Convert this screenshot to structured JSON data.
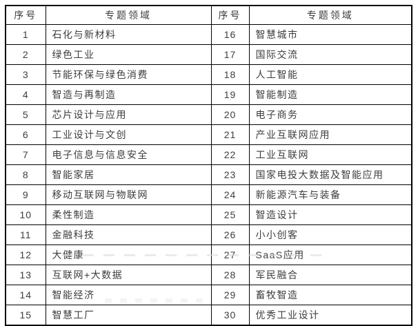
{
  "table": {
    "border_color": "#000000",
    "text_color": "#3d3d3d",
    "header": {
      "no": "序号",
      "field": "专题领域"
    },
    "left_rows": [
      {
        "no": "1",
        "field": "石化与新材料"
      },
      {
        "no": "2",
        "field": "绿色工业"
      },
      {
        "no": "3",
        "field": "节能环保与绿色消费"
      },
      {
        "no": "4",
        "field": "智造与再制造"
      },
      {
        "no": "5",
        "field": "芯片设计与应用"
      },
      {
        "no": "6",
        "field": "工业设计与文创"
      },
      {
        "no": "7",
        "field": "电子信息与信息安全"
      },
      {
        "no": "8",
        "field": "智能家居"
      },
      {
        "no": "9",
        "field": "移动互联网与物联网"
      },
      {
        "no": "10",
        "field": "柔性制造"
      },
      {
        "no": "11",
        "field": "金融科技"
      },
      {
        "no": "12",
        "field": "大健康"
      },
      {
        "no": "13",
        "field": "互联网+大数据"
      },
      {
        "no": "14",
        "field": "智能经济"
      },
      {
        "no": "15",
        "field": "智慧工厂"
      }
    ],
    "right_rows": [
      {
        "no": "16",
        "field": "智慧城市"
      },
      {
        "no": "17",
        "field": "国际交流"
      },
      {
        "no": "18",
        "field": "人工智能"
      },
      {
        "no": "19",
        "field": "智能制造"
      },
      {
        "no": "20",
        "field": "电子商务"
      },
      {
        "no": "21",
        "field": "产业互联网应用"
      },
      {
        "no": "22",
        "field": "工业互联网"
      },
      {
        "no": "23",
        "field": "国家电投大数据及智能应用"
      },
      {
        "no": "24",
        "field": "新能源汽车与装备"
      },
      {
        "no": "25",
        "field": "智造设计"
      },
      {
        "no": "26",
        "field": "小小创客"
      },
      {
        "no": "27",
        "field": "SaaS应用"
      },
      {
        "no": "28",
        "field": "军民融合"
      },
      {
        "no": "29",
        "field": "畜牧智造"
      },
      {
        "no": "30",
        "field": "优秀工业设计"
      }
    ]
  },
  "chart_data": {
    "type": "table",
    "title": "",
    "columns": [
      "序号",
      "专题领域",
      "序号",
      "专题领域"
    ],
    "rows": [
      [
        1,
        "石化与新材料",
        16,
        "智慧城市"
      ],
      [
        2,
        "绿色工业",
        17,
        "国际交流"
      ],
      [
        3,
        "节能环保与绿色消费",
        18,
        "人工智能"
      ],
      [
        4,
        "智造与再制造",
        19,
        "智能制造"
      ],
      [
        5,
        "芯片设计与应用",
        20,
        "电子商务"
      ],
      [
        6,
        "工业设计与文创",
        21,
        "产业互联网应用"
      ],
      [
        7,
        "电子信息与信息安全",
        22,
        "工业互联网"
      ],
      [
        8,
        "智能家居",
        23,
        "国家电投大数据及智能应用"
      ],
      [
        9,
        "移动互联网与物联网",
        24,
        "新能源汽车与装备"
      ],
      [
        10,
        "柔性制造",
        25,
        "智造设计"
      ],
      [
        11,
        "金融科技",
        26,
        "小小创客"
      ],
      [
        12,
        "大健康",
        27,
        "SaaS应用"
      ],
      [
        13,
        "互联网+大数据",
        28,
        "军民融合"
      ],
      [
        14,
        "智能经济",
        29,
        "畜牧智造"
      ],
      [
        15,
        "智慧工厂",
        30,
        "优秀工业设计"
      ]
    ]
  }
}
